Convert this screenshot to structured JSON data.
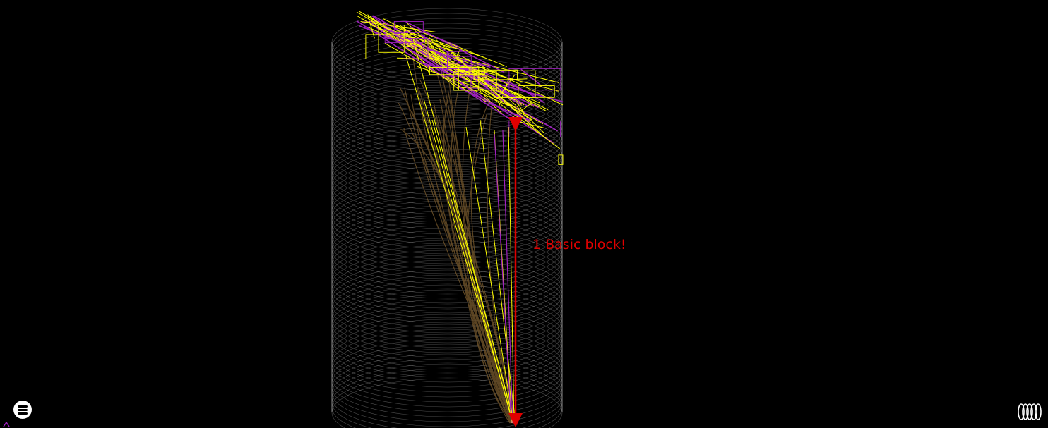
{
  "annotation": {
    "text": "1 Basic block!",
    "color": "#e00000"
  },
  "colors": {
    "background": "#000000",
    "cylinder_rings": "#8a8a8a",
    "trace_yellow": "#ffff00",
    "trace_purple": "#a020c0",
    "trace_brown": "#6b5028",
    "arrow": "#e00000"
  },
  "controls": {
    "menu_icon": "hamburger-menu-icon",
    "spring_icon": "spring-coil-icon"
  }
}
